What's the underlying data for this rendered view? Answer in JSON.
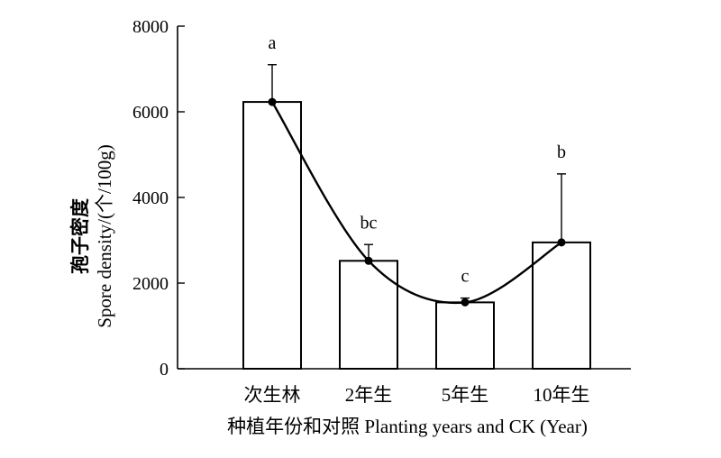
{
  "chart_data": {
    "type": "bar",
    "categories": [
      "次生林",
      "2年生",
      "5年生",
      "10年生"
    ],
    "values": [
      6230,
      2520,
      1550,
      2950
    ],
    "error_upper": [
      7100,
      2900,
      1650,
      4550
    ],
    "significance": [
      "a",
      "bc",
      "c",
      "b"
    ],
    "trend_line": "smooth curve through bar tops",
    "ylim": [
      0,
      8000
    ],
    "yticks": [
      "0",
      "2000",
      "4000",
      "6000",
      "8000"
    ],
    "ylabel_cn": "孢子密度",
    "ylabel_en": "Spore density/(个/100g)",
    "xlabel": "种植年份和对照 Planting years and CK (Year)",
    "grid": false,
    "colors": {
      "bar_fill": "#ffffff",
      "stroke": "#000000"
    }
  }
}
